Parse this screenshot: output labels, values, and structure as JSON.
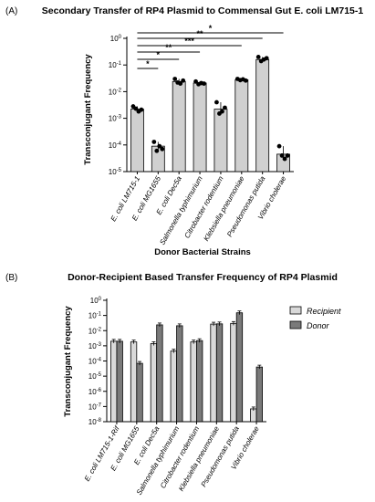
{
  "chart_data": [
    {
      "type": "bar",
      "panel_label": "(A)",
      "title": "Secondary Transfer of RP4 Plasmid to Commensal Gut E. coli LM715-1",
      "ylabel": "Transconjugant Frequency",
      "xlabel": "Donor Bacterial Strains",
      "yscale": "log",
      "ylim": [
        1e-05,
        1
      ],
      "ytick_labels": [
        "10-5",
        "10-4",
        "10-3",
        "10-2",
        "10-1",
        "100"
      ],
      "categories": [
        "E. coli LM715-1",
        "E. coli MG1655",
        "E. coli Dec5a",
        "Salmonella typhimurium",
        "Citrobacter rodentium",
        "Klebsiella pneumoniae",
        "Pseudomonas putida",
        "Vibrio cholerae"
      ],
      "values": [
        0.0022,
        9e-05,
        0.024,
        0.021,
        0.0022,
        0.028,
        0.16,
        4.5e-05
      ],
      "points": [
        [
          0.0028,
          0.0023,
          0.0018,
          0.0021
        ],
        [
          0.00013,
          6e-05,
          9e-05,
          7e-05
        ],
        [
          0.03,
          0.022,
          0.02,
          0.026
        ],
        [
          0.024,
          0.019,
          0.021,
          0.02
        ],
        [
          0.004,
          0.0015,
          0.0018,
          0.0025
        ],
        [
          0.03,
          0.027,
          0.029,
          0.026
        ],
        [
          0.2,
          0.14,
          0.16,
          0.18
        ],
        [
          9e-05,
          4e-05,
          3e-05,
          4e-05
        ]
      ],
      "significance": [
        {
          "from": 0,
          "to": 1,
          "label": "*"
        },
        {
          "from": 0,
          "to": 2,
          "label": "*"
        },
        {
          "from": 0,
          "to": 3,
          "label": "**"
        },
        {
          "from": 0,
          "to": 5,
          "label": "***"
        },
        {
          "from": 0,
          "to": 6,
          "label": "**"
        },
        {
          "from": 0,
          "to": 7,
          "label": "*"
        }
      ],
      "bar_color": "#d0d0d0",
      "point_color": "#000000"
    },
    {
      "type": "bar",
      "panel_label": "(B)",
      "title": "Donor-Recipient Based Transfer Frequency of RP4 Plasmid",
      "ylabel": "Transconjugant Frequency",
      "yscale": "log",
      "ylim": [
        1e-08,
        1
      ],
      "ytick_labels": [
        "10-8",
        "10-7",
        "10-6",
        "10-5",
        "10-4",
        "10-3",
        "10-2",
        "10-1",
        "100"
      ],
      "categories": [
        "E. coli LM715-1-Rif",
        "E. coli MG1655",
        "E. coli Dec5a",
        "Salmonella typhimurium",
        "Citrobacter rodentium",
        "Klebsiella pneumoniae",
        "Pseudomonas putida",
        "Vibrio cholerae"
      ],
      "legend_position": "top-right",
      "series": [
        {
          "name": "Recipient",
          "color": "#d9d9d9",
          "values": [
            0.002,
            0.0018,
            0.0014,
            0.00045,
            0.0018,
            0.027,
            0.03,
            7e-08
          ]
        },
        {
          "name": "Donor",
          "color": "#7a7a7a",
          "values": [
            0.002,
            7e-05,
            0.024,
            0.021,
            0.0022,
            0.028,
            0.15,
            4e-05
          ]
        }
      ]
    }
  ]
}
